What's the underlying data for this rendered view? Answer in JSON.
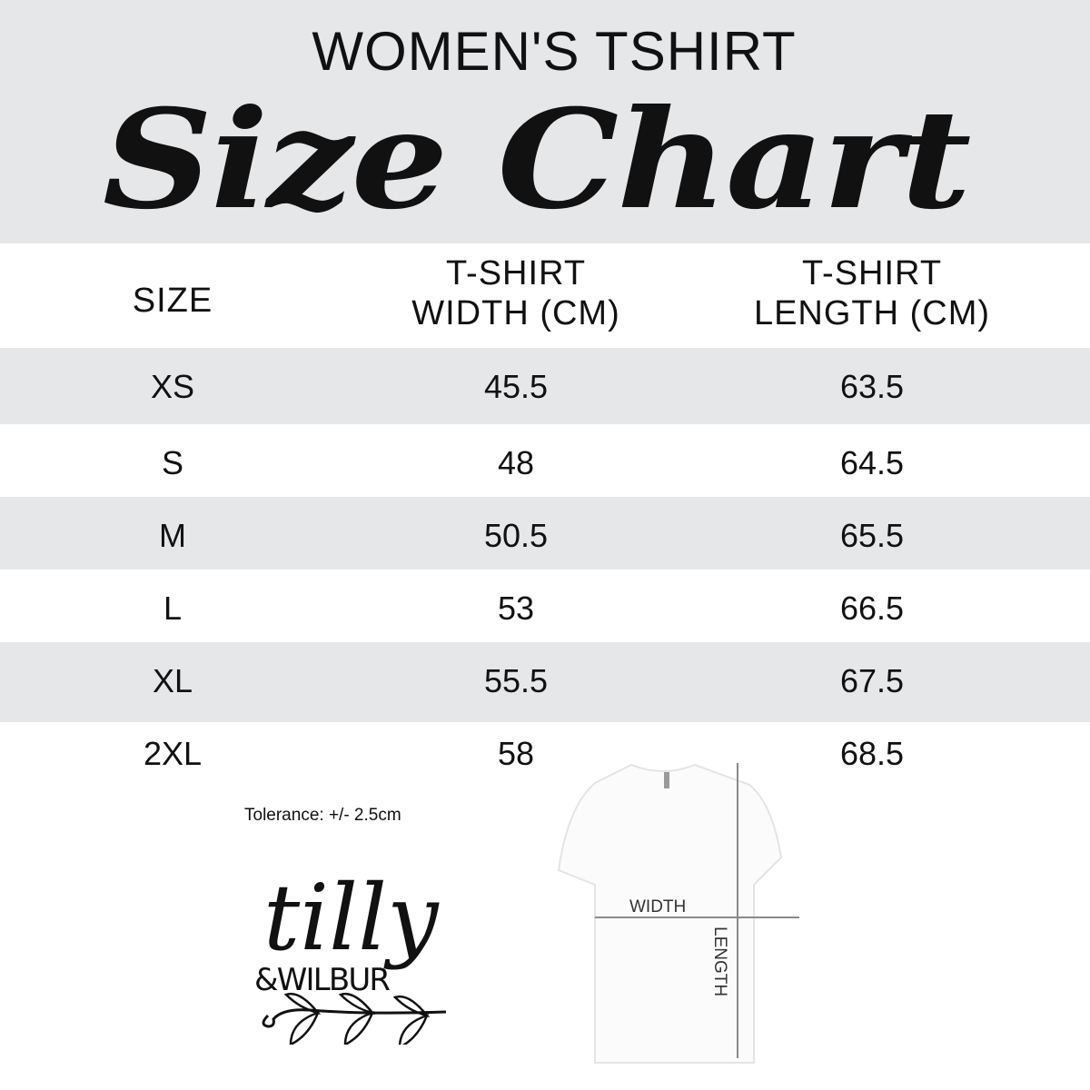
{
  "header": {
    "kicker": "WOMEN'S TSHIRT",
    "title": "Size Chart"
  },
  "table": {
    "columns": [
      "SIZE",
      "T-SHIRT\nWIDTH (CM)",
      "T-SHIRT\nLENGTH (CM)"
    ],
    "column_lines": [
      [
        "SIZE"
      ],
      [
        "T-SHIRT",
        "WIDTH (CM)"
      ],
      [
        "T-SHIRT",
        "LENGTH (CM)"
      ]
    ],
    "rows": [
      {
        "size": "XS",
        "width": "45.5",
        "length": "63.5"
      },
      {
        "size": "S",
        "width": "48",
        "length": "64.5"
      },
      {
        "size": "M",
        "width": "50.5",
        "length": "65.5"
      },
      {
        "size": "L",
        "width": "53",
        "length": "66.5"
      },
      {
        "size": "XL",
        "width": "55.5",
        "length": "67.5"
      },
      {
        "size": "2XL",
        "width": "58",
        "length": "68.5"
      }
    ]
  },
  "tolerance": "Tolerance: +/- 2.5cm",
  "logo": {
    "line1": "tilly",
    "line2": "&WILBUR"
  },
  "diagram": {
    "width_label": "WIDTH",
    "length_label": "LENGTH"
  },
  "colors": {
    "band": "#e6e7e9",
    "text": "#111111",
    "measure_line": "#8a8a8a"
  }
}
